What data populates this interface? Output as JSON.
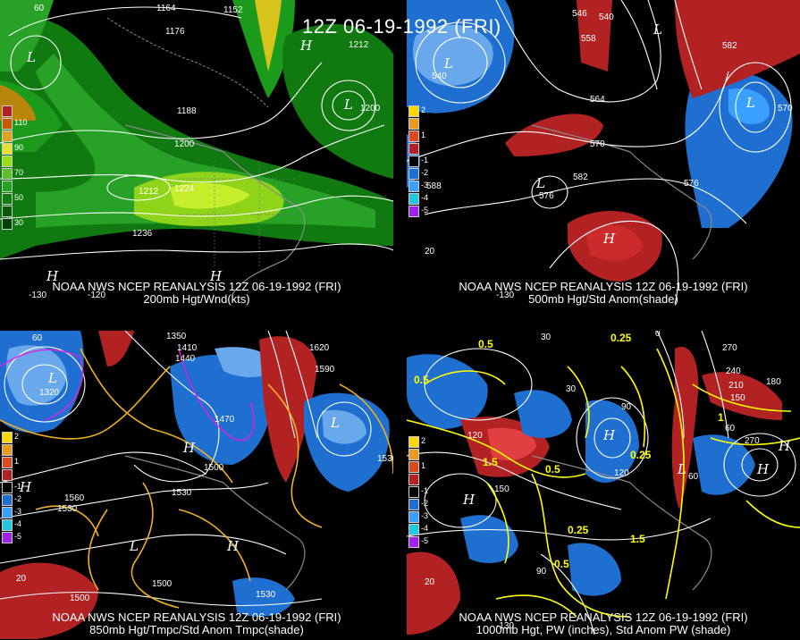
{
  "title": "12Z 06-19-1992 (FRI)",
  "panels": [
    {
      "caption_line1": "NOAA NWS NCEP REANALYSIS 12Z 06-19-1992 (FRI)",
      "caption_line2": "200mb Hgt/Wnd(kts)",
      "legend": [
        "110",
        "90",
        "70",
        "50",
        "30"
      ],
      "contour_labels": [
        "1164",
        "1152",
        "1176",
        "1188",
        "1200",
        "1212",
        "1224",
        "1236",
        "1200",
        "1212"
      ],
      "axis_labels": [
        "60",
        "-130",
        "-120"
      ],
      "centers": [
        "L",
        "H",
        "L",
        "H",
        "H"
      ]
    },
    {
      "caption_line1": "NOAA NWS NCEP REANALYSIS 12Z 06-19-1992 (FRI)",
      "caption_line2": "500mb Hgt/Std Anom(shade)",
      "legend": [
        "2",
        "1",
        "-1",
        "-2",
        "-3",
        "-4",
        "-5"
      ],
      "contour_labels": [
        "546",
        "540",
        "558",
        "564",
        "570",
        "582",
        "576",
        "588",
        "582",
        "540",
        "576",
        "570"
      ],
      "axis_labels": [
        "-130",
        "20"
      ],
      "centers": [
        "L",
        "L",
        "L",
        "H",
        "L"
      ]
    },
    {
      "caption_line1": "NOAA NWS NCEP REANALYSIS 12Z 06-19-1992 (FRI)",
      "caption_line2": "850mb Hgt/Tmpc/Std Anom Tmpc(shade)",
      "legend": [
        "2",
        "1",
        "-1",
        "-2",
        "-3",
        "-4",
        "-5"
      ],
      "contour_labels": [
        "1350",
        "1410",
        "1440",
        "1320",
        "1470",
        "1500",
        "1530",
        "1560",
        "1530",
        "1620",
        "1590",
        "1530",
        "1500",
        "1530",
        "1500"
      ],
      "axis_labels": [
        "60",
        "20"
      ],
      "centers": [
        "L",
        "H",
        "H",
        "L",
        "L",
        "H"
      ]
    },
    {
      "caption_line1": "NOAA NWS NCEP REANALYSIS 12Z 06-19-1992 (FRI)",
      "caption_line2": "1000mb Hgt, PW (inches), Std Anom PW (shade)",
      "legend": [
        "2",
        "1",
        "-1",
        "-2",
        "-3",
        "-4",
        "-5"
      ],
      "contour_labels": [
        "30",
        "0",
        "270",
        "240",
        "210",
        "180",
        "150",
        "120",
        "90",
        "60",
        "30",
        "150",
        "120",
        "90",
        "270",
        "60"
      ],
      "pw_labels": [
        "0.5",
        "0.25",
        "0.5",
        "1.5",
        "1",
        "0.5",
        "0.25",
        "1.5",
        "0.5",
        "0.25"
      ],
      "axis_labels": [
        "-130",
        "20"
      ],
      "centers": [
        "H",
        "H",
        "L",
        "H",
        "H"
      ]
    }
  ],
  "colors": {
    "background": "#000000",
    "wind_light": "#006400",
    "wind_mid": "#22a622",
    "wind_high": "#9ade1a",
    "anom_pos": "#b22222",
    "anom_neg": "#1e6fd0",
    "contour_height": "#ffffff",
    "contour_temp": "#f0b020",
    "contour_pw": "#ffff00",
    "coast": "#8a8a8a"
  }
}
